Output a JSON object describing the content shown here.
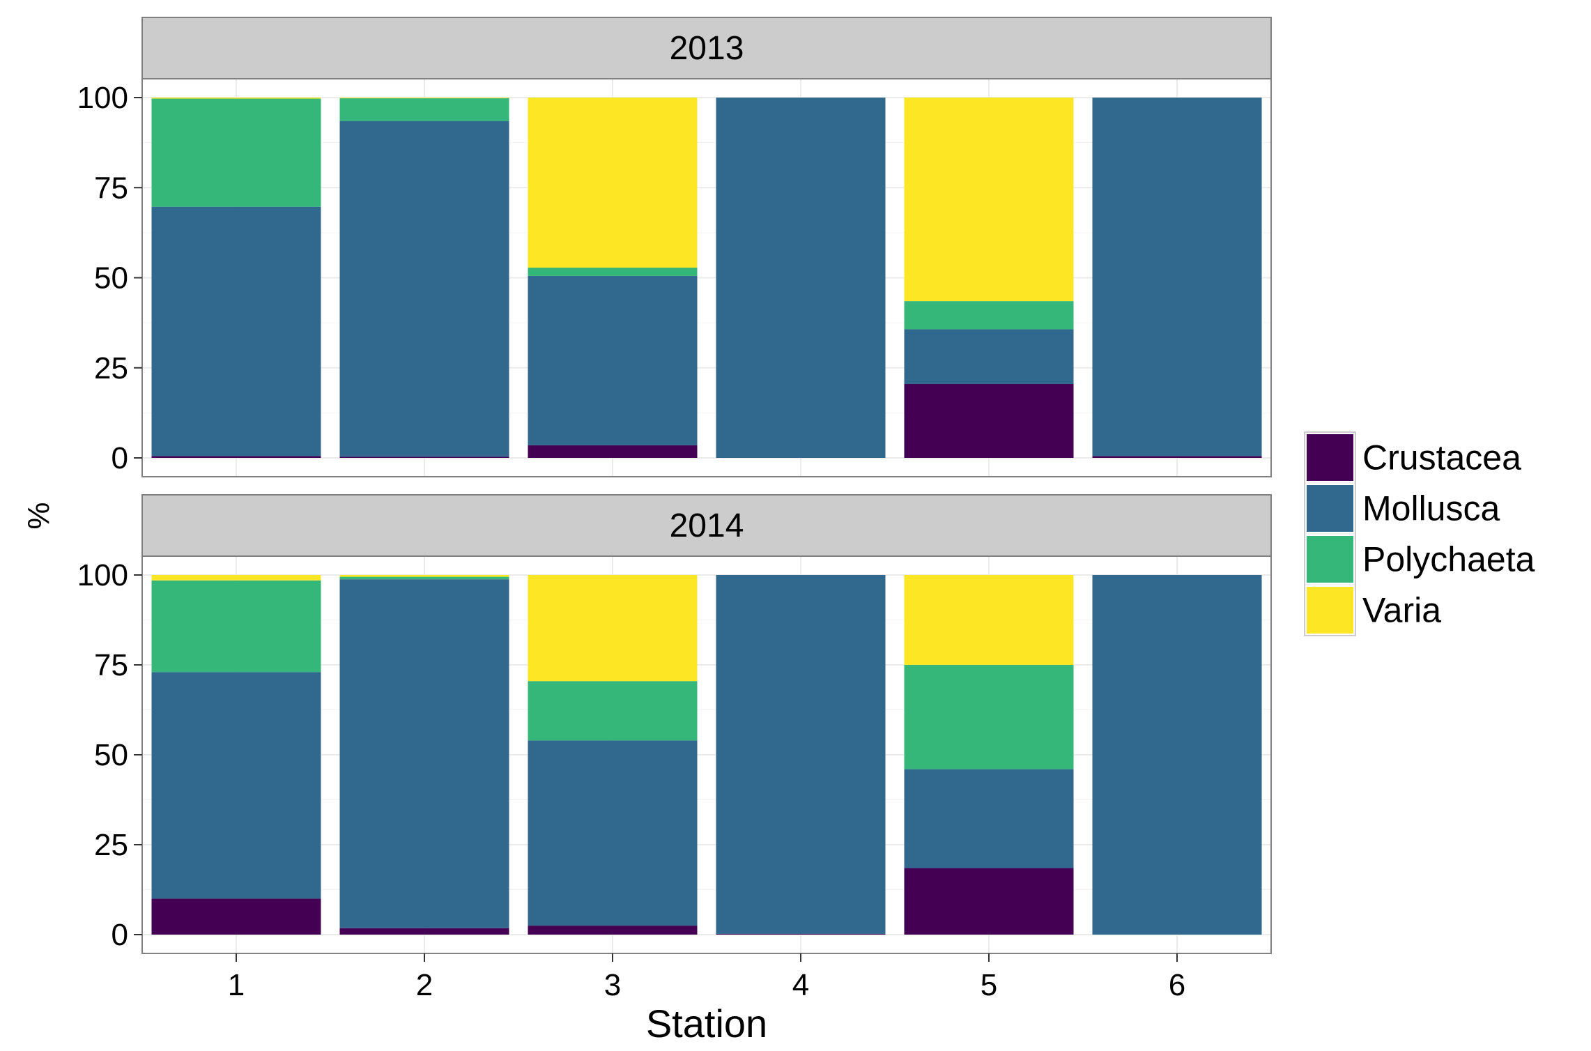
{
  "chart_data": {
    "type": "bar",
    "stacked": true,
    "xlabel": "Station",
    "ylabel": "%",
    "categories": [
      "1",
      "2",
      "3",
      "4",
      "5",
      "6"
    ],
    "ylim": [
      0,
      100
    ],
    "yticks": [
      0,
      25,
      50,
      75,
      100
    ],
    "ytick_labels": [
      "0",
      "25",
      "50",
      "75",
      "100"
    ],
    "grid": true,
    "legend_position": "right",
    "legend": [
      {
        "name": "Crustacea",
        "color": "#440154"
      },
      {
        "name": "Mollusca",
        "color": "#31688E"
      },
      {
        "name": "Polychaeta",
        "color": "#35B779"
      },
      {
        "name": "Varia",
        "color": "#FDE725"
      }
    ],
    "panels": [
      {
        "strip": "2013",
        "series": [
          {
            "name": "Crustacea",
            "values": [
              0.5,
              0.3,
              3.5,
              0.0,
              20.5,
              0.5
            ]
          },
          {
            "name": "Mollusca",
            "values": [
              69.2,
              93.2,
              47.0,
              100.0,
              15.2,
              99.5
            ]
          },
          {
            "name": "Polychaeta",
            "values": [
              30.0,
              6.3,
              2.3,
              0.0,
              7.8,
              0.0
            ]
          },
          {
            "name": "Varia",
            "values": [
              0.3,
              0.2,
              47.2,
              0.0,
              56.5,
              0.0
            ]
          }
        ]
      },
      {
        "strip": "2014",
        "series": [
          {
            "name": "Crustacea",
            "values": [
              10.0,
              1.8,
              2.5,
              0.2,
              18.5,
              0.0
            ]
          },
          {
            "name": "Mollusca",
            "values": [
              63.0,
              97.0,
              51.5,
              99.8,
              27.5,
              100.0
            ]
          },
          {
            "name": "Polychaeta",
            "values": [
              25.5,
              0.7,
              16.5,
              0.0,
              29.0,
              0.0
            ]
          },
          {
            "name": "Varia",
            "values": [
              1.5,
              0.5,
              29.5,
              0.0,
              25.0,
              0.0
            ]
          }
        ]
      }
    ]
  }
}
